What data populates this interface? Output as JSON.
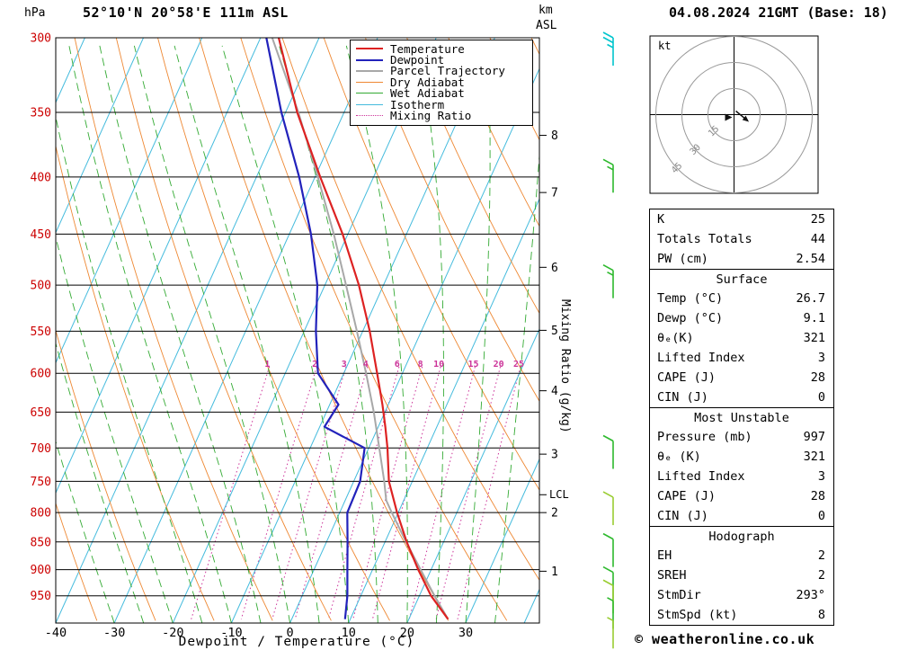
{
  "header": {
    "pressure_unit": "hPa",
    "station": "52°10'N 20°58'E 111m ASL",
    "km_label": "km",
    "asl_label": "ASL",
    "datetime": "04.08.2024 21GMT (Base: 18)"
  },
  "axes": {
    "bottom_label": "Dewpoint / Temperature (°C)",
    "right_label": "Mixing Ratio (g/kg)",
    "lcl_label": "LCL"
  },
  "colors": {
    "temperature": "#dd2222",
    "dewpoint": "#2222bb",
    "parcel": "#a8a8a8",
    "dry_adiabat": "#ee8833",
    "wet_adiabat": "#33aa33",
    "isotherm": "#44bbdd",
    "mixing_ratio": "#cc3399",
    "pressure_labels": "#cc0000"
  },
  "legend": [
    {
      "label": "Temperature",
      "color": "#dd2222",
      "style": "solid-thick"
    },
    {
      "label": "Dewpoint",
      "color": "#2222bb",
      "style": "solid-thick"
    },
    {
      "label": "Parcel Trajectory",
      "color": "#a8a8a8",
      "style": "solid-thick"
    },
    {
      "label": "Dry Adiabat",
      "color": "#ee8833",
      "style": "solid-thin"
    },
    {
      "label": "Wet Adiabat",
      "color": "#33aa33",
      "style": "solid-thin"
    },
    {
      "label": "Isotherm",
      "color": "#44bbdd",
      "style": "solid-thin"
    },
    {
      "label": "Mixing Ratio",
      "color": "#cc3399",
      "style": "dotted"
    }
  ],
  "chart_data": {
    "type": "skewt_log_p_sounding",
    "title": "52°10'N 20°58'E 111m ASL",
    "xlabel": "Dewpoint / Temperature (°C)",
    "ylabel": "hPa",
    "xlim_surface_C": [
      -40,
      42
    ],
    "ylim_hPa": [
      1005,
      300
    ],
    "pressure_ticks": [
      300,
      350,
      400,
      450,
      500,
      550,
      600,
      650,
      700,
      750,
      800,
      850,
      900,
      950
    ],
    "temp_ticks": [
      -40,
      -30,
      -20,
      -10,
      0,
      10,
      20,
      30
    ],
    "km_ticks": [
      {
        "km": 1,
        "p": 903
      },
      {
        "km": 2,
        "p": 800
      },
      {
        "km": 3,
        "p": 709
      },
      {
        "km": 4,
        "p": 622
      },
      {
        "km": 5,
        "p": 549
      },
      {
        "km": 6,
        "p": 482
      },
      {
        "km": 7,
        "p": 413
      },
      {
        "km": 8,
        "p": 367
      }
    ],
    "lcl_pressure_hPa": 771,
    "mixing_ratio_lines_gkg": [
      1,
      2,
      3,
      4,
      6,
      8,
      10,
      15,
      20,
      25
    ],
    "isotherm_step_C": 10,
    "dry_adiabat_step_K": 10,
    "wet_adiabat_start_temps_C": [
      -30,
      -25,
      -20,
      -15,
      -10,
      -5,
      0,
      5,
      10,
      15,
      20,
      25,
      30,
      35
    ],
    "pressure_hPa": [
      997,
      950,
      900,
      850,
      800,
      750,
      700,
      670,
      640,
      600,
      550,
      500,
      450,
      400,
      350,
      300
    ],
    "temperature_C": [
      26.7,
      22.0,
      17.8,
      13.7,
      9.8,
      6.0,
      3.2,
      1.2,
      -1.0,
      -4.3,
      -8.8,
      -14.2,
      -20.9,
      -29.1,
      -38.0,
      -46.9
    ],
    "dewpoint_C": [
      9.1,
      7.7,
      5.7,
      3.6,
      1.3,
      1.1,
      -0.7,
      -9.2,
      -8.5,
      -14.4,
      -18.0,
      -21.3,
      -26.3,
      -32.7,
      -40.7,
      -49.0
    ],
    "parcel": {
      "pressure_hPa": [
        997,
        950,
        900,
        850,
        800,
        780,
        750,
        700,
        650,
        600,
        550,
        500,
        450,
        400,
        350,
        300
      ],
      "temperature_C": [
        26.7,
        22.6,
        18.2,
        13.6,
        8.9,
        7.0,
        5.2,
        1.8,
        -1.9,
        -6.2,
        -11.0,
        -16.4,
        -22.4,
        -29.5,
        -37.8,
        -48.0
      ]
    },
    "wind_barbs": [
      {
        "pressure_hPa": 300,
        "speed_kt": 25,
        "color": "#00c5cd"
      },
      {
        "pressure_hPa": 390,
        "speed_kt": 15,
        "color": "#2db92d"
      },
      {
        "pressure_hPa": 485,
        "speed_kt": 15,
        "color": "#2db92d"
      },
      {
        "pressure_hPa": 690,
        "speed_kt": 10,
        "color": "#2db92d"
      },
      {
        "pressure_hPa": 775,
        "speed_kt": 10,
        "color": "#9acd32"
      },
      {
        "pressure_hPa": 845,
        "speed_kt": 10,
        "color": "#2db92d"
      },
      {
        "pressure_hPa": 905,
        "speed_kt": 10,
        "color": "#2db92d"
      },
      {
        "pressure_hPa": 930,
        "speed_kt": 10,
        "color": "#9acd32"
      },
      {
        "pressure_hPa": 960,
        "speed_kt": 5,
        "color": "#2db92d"
      },
      {
        "pressure_hPa": 1000,
        "speed_kt": 5,
        "color": "#9acd32"
      }
    ]
  },
  "hodograph": {
    "unit_label": "kt",
    "rings_kt": [
      15,
      30,
      45
    ],
    "storm_dir_deg": 293,
    "storm_speed_kt": 8
  },
  "tables": [
    {
      "header": null,
      "rows": [
        [
          "K",
          "25"
        ],
        [
          "Totals Totals",
          "44"
        ],
        [
          "PW (cm)",
          "2.54"
        ]
      ]
    },
    {
      "header": "Surface",
      "rows": [
        [
          "Temp (°C)",
          "26.7"
        ],
        [
          "Dewp (°C)",
          "9.1"
        ],
        [
          "θₑ(K)",
          "321"
        ],
        [
          "Lifted Index",
          "3"
        ],
        [
          "CAPE (J)",
          "28"
        ],
        [
          "CIN (J)",
          "0"
        ]
      ]
    },
    {
      "header": "Most Unstable",
      "rows": [
        [
          "Pressure (mb)",
          "997"
        ],
        [
          "θₑ (K)",
          "321"
        ],
        [
          "Lifted Index",
          "3"
        ],
        [
          "CAPE (J)",
          "28"
        ],
        [
          "CIN (J)",
          "0"
        ]
      ]
    },
    {
      "header": "Hodograph",
      "rows": [
        [
          "EH",
          "2"
        ],
        [
          "SREH",
          "2"
        ],
        [
          "StmDir",
          "293°"
        ],
        [
          "StmSpd (kt)",
          "8"
        ]
      ]
    }
  ],
  "footer": {
    "copyright": "© weatheronline.co.uk"
  }
}
